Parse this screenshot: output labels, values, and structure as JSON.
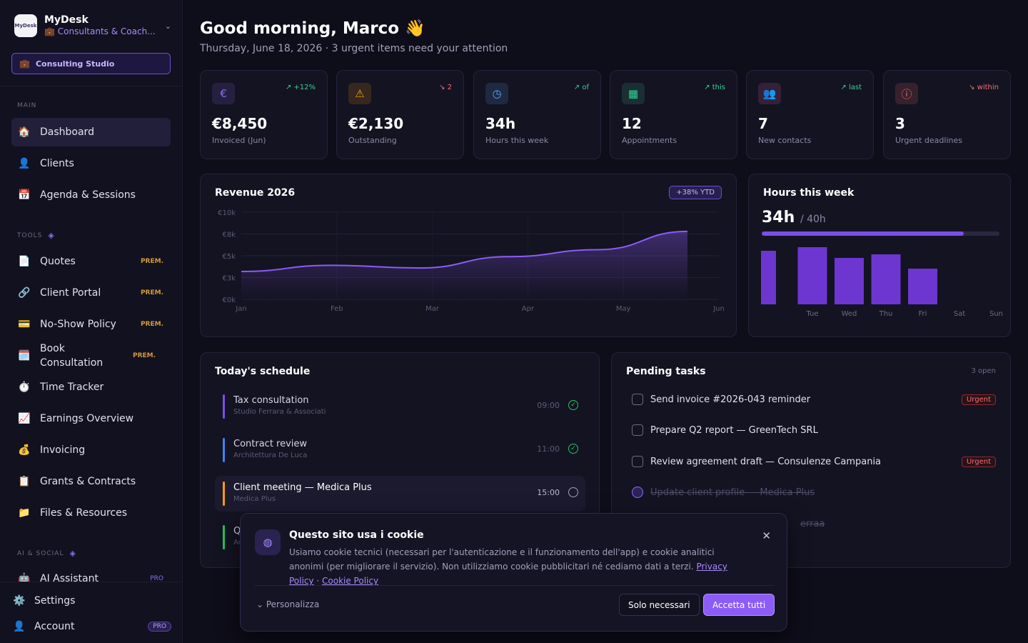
{
  "brand": {
    "logo": "MyDesk",
    "name": "MyDesk",
    "subtitle": "💼 Consultants & Coach...",
    "studio": "Consulting Studio"
  },
  "sidebar": {
    "sections": {
      "main": "MAIN",
      "tools": "TOOLS",
      "ai": "AI & SOCIAL"
    },
    "main": [
      {
        "icon": "🏠",
        "label": "Dashboard"
      },
      {
        "icon": "👤",
        "label": "Clients"
      },
      {
        "icon": "📅",
        "label": "Agenda & Sessions"
      }
    ],
    "tools": [
      {
        "icon": "📄",
        "label": "Quotes",
        "badge": "PREM."
      },
      {
        "icon": "🔗",
        "label": "Client Portal",
        "badge": "PREM."
      },
      {
        "icon": "💳",
        "label": "No-Show Policy",
        "badge": "PREM."
      },
      {
        "icon": "🗓️",
        "label": "Book Consultation",
        "badge": "PREM."
      },
      {
        "icon": "⏱️",
        "label": "Time Tracker",
        "badge": ""
      },
      {
        "icon": "📈",
        "label": "Earnings Overview",
        "badge": ""
      },
      {
        "icon": "💰",
        "label": "Invoicing",
        "badge": ""
      },
      {
        "icon": "📋",
        "label": "Grants & Contracts",
        "badge": ""
      },
      {
        "icon": "📁",
        "label": "Files & Resources",
        "badge": ""
      }
    ],
    "ai": [
      {
        "icon": "🤖",
        "label": "AI Assistant",
        "badge": "PRO"
      }
    ],
    "footer": {
      "settings": "Settings",
      "account": "Account",
      "account_badge": "PRO"
    }
  },
  "header": {
    "greeting": "Good morning, Marco 👋",
    "subtitle": "Thursday, June 18, 2026 · 3 urgent items need your attention"
  },
  "kpis": [
    {
      "icon": "€",
      "value": "€8,450",
      "label": "Invoiced (Jun)",
      "trend": "↗ +12%",
      "color": "#8b6ef0",
      "trend_color": "#34d399"
    },
    {
      "icon": "⚠",
      "value": "€2,130",
      "label": "Outstanding",
      "trend": "↘ 2",
      "color": "#f59e0b",
      "trend_color": "#f87171"
    },
    {
      "icon": "◷",
      "value": "34h",
      "label": "Hours this week",
      "trend": "↗ of",
      "color": "#60a5fa",
      "trend_color": "#34d399"
    },
    {
      "icon": "▦",
      "value": "12",
      "label": "Appointments",
      "trend": "↗ this",
      "color": "#34d399",
      "trend_color": "#34d399"
    },
    {
      "icon": "👥",
      "value": "7",
      "label": "New contacts",
      "trend": "↗ last",
      "color": "#f472b6",
      "trend_color": "#34d399"
    },
    {
      "icon": "ⓘ",
      "value": "3",
      "label": "Urgent deadlines",
      "trend": "↘ within",
      "color": "#f87171",
      "trend_color": "#f87171"
    }
  ],
  "revenue": {
    "title": "Revenue 2026",
    "badge": "+38% YTD"
  },
  "hours": {
    "title": "Hours this week",
    "value": "34h",
    "target": "/ 40h",
    "progress": 0.85
  },
  "chart_data": [
    {
      "type": "area",
      "title": "Revenue 2026",
      "x": [
        "Jan",
        "Feb",
        "Mar",
        "Apr",
        "May",
        "Jun"
      ],
      "y_ticks": [
        "€0k",
        "€3k",
        "€5k",
        "€8k",
        "€10k"
      ],
      "ylim": [
        0,
        10000
      ],
      "series": [
        {
          "values": [
            3200,
            3900,
            3600,
            4900,
            5700,
            7800
          ]
        }
      ],
      "color": "#8b5cf6"
    },
    {
      "type": "bar",
      "title": "Hours this week",
      "categories": [
        "Mon",
        "Tue",
        "Wed",
        "Thu",
        "Fri",
        "Sat",
        "Sun"
      ],
      "tick_labels": [
        "",
        "Tue",
        "Wed",
        "Thu",
        "Fri",
        "Sat",
        "Sun"
      ],
      "values": [
        7.5,
        8,
        6.5,
        7,
        5,
        0,
        0
      ],
      "ylim": [
        0,
        8
      ],
      "color": "#6d36d0"
    }
  ],
  "schedule": {
    "title": "Today's schedule",
    "items": [
      {
        "title": "Tax consultation",
        "sub": "Studio Ferrara & Associati",
        "time": "09:00",
        "color": "#7c4ee8",
        "status": "✓",
        "done": true
      },
      {
        "title": "Contract review",
        "sub": "Architettura De Luca",
        "time": "11:00",
        "color": "#3b82f6",
        "status": "✓",
        "done": true
      },
      {
        "title": "Client meeting — Medica Plus",
        "sub": "Medica Plus",
        "time": "15:00",
        "color": "#f59e0b",
        "status": "",
        "done": false
      },
      {
        "title": "Q",
        "sub": "Ac",
        "time": "",
        "color": "#22c55e",
        "status": "",
        "done": false
      }
    ]
  },
  "tasks": {
    "title": "Pending tasks",
    "count": "3 open",
    "items": [
      {
        "label": "Send invoice #2026-043 reminder",
        "urgent": "Urgent",
        "done": false
      },
      {
        "label": "Prepare Q2 report — GreenTech SRL",
        "urgent": "",
        "done": false
      },
      {
        "label": "Review agreement draft — Consulenze Campania",
        "urgent": "Urgent",
        "done": false
      },
      {
        "label": "Update client profile — Medica Plus",
        "urgent": "",
        "done": true
      },
      {
        "label": "erraa",
        "urgent": "",
        "done": true
      }
    ]
  },
  "cookie": {
    "title": "Questo sito usa i cookie",
    "text": "Usiamo cookie tecnici (necessari per l'autenticazione e il funzionamento dell'app) e cookie analitici anonimi (per migliorare il servizio). Non utilizziamo cookie pubblicitari né cediamo dati a terzi.",
    "privacy": "Privacy Policy",
    "sep": "·",
    "cookie_policy": "Cookie Policy",
    "customize": "⌄ Personalizza",
    "necessary": "Solo necessari",
    "accept": "Accetta tutti"
  }
}
